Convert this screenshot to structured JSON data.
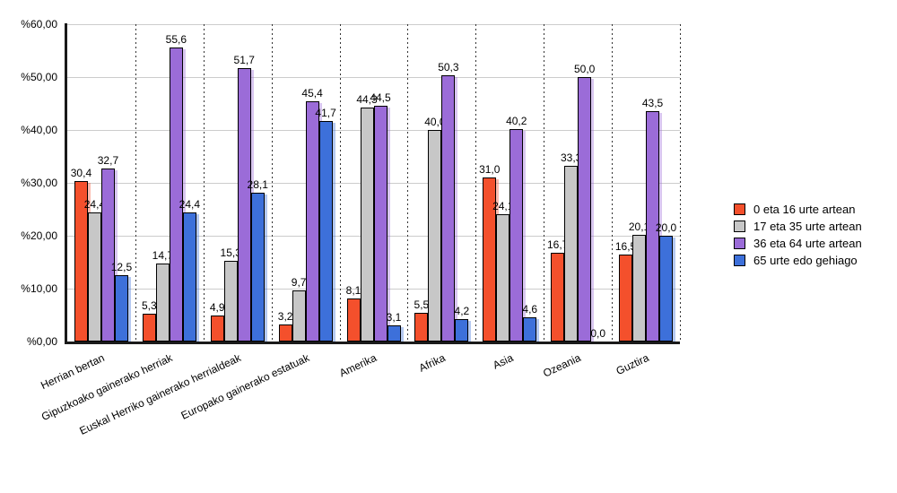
{
  "chart_data": {
    "type": "bar",
    "title": "",
    "xlabel": "",
    "ylabel": "",
    "categories": [
      "Herrian bertan",
      "Gipuzkoako gainerako herriak",
      "Euskal Herriko gainerako herrialdeak",
      "Europako gainerako estatuak",
      "Amerika",
      "Afrika",
      "Asia",
      "Ozeania",
      "Guztira"
    ],
    "series": [
      {
        "name": "0 eta 16 urte artean",
        "color": "#f4502c",
        "values": [
          30.4,
          5.3,
          4.9,
          3.2,
          8.1,
          5.5,
          31.0,
          16.7,
          16.5
        ],
        "labels": [
          "30,4",
          "5,3",
          "4,9",
          "3,2",
          "8,1",
          "5,5",
          "31,0",
          "16,7",
          "16,5"
        ]
      },
      {
        "name": "17 eta 35 urte artean",
        "color": "#c7c7c7",
        "values": [
          24.4,
          14.7,
          15.3,
          9.7,
          44.3,
          40.0,
          24.1,
          33.3,
          20.1
        ],
        "labels": [
          "24,4",
          "14,7",
          "15,3",
          "9,7",
          "44,3",
          "40,0",
          "24,1",
          "33,3",
          "20,1"
        ]
      },
      {
        "name": "36 eta 64 urte artean",
        "color": "#9b6cd8",
        "values": [
          32.7,
          55.6,
          51.7,
          45.4,
          44.5,
          50.3,
          40.2,
          50.0,
          43.5
        ],
        "labels": [
          "32,7",
          "55,6",
          "51,7",
          "45,4",
          "44,5",
          "50,3",
          "40,2",
          "50,0",
          "43,5"
        ]
      },
      {
        "name": "65 urte edo gehiago",
        "color": "#3d70da",
        "values": [
          12.5,
          24.4,
          28.1,
          41.7,
          3.1,
          4.2,
          4.6,
          0.0,
          20.0
        ],
        "labels": [
          "12,5",
          "24,4",
          "28,1",
          "41,7",
          "3,1",
          "4,2",
          "4,6",
          "0,0",
          "20,0"
        ]
      }
    ],
    "y_axis": {
      "min": 0,
      "max": 60,
      "tick_step": 10,
      "tick_labels": [
        "%0,00",
        "%10,00",
        "%20,00",
        "%30,00",
        "%40,00",
        "%50,00",
        "%60,00"
      ]
    },
    "grid": true,
    "legend_position": "right",
    "value_decimal_separator": ",",
    "bar_outline_color": "#000000",
    "gridline_color": "#cccccc"
  }
}
